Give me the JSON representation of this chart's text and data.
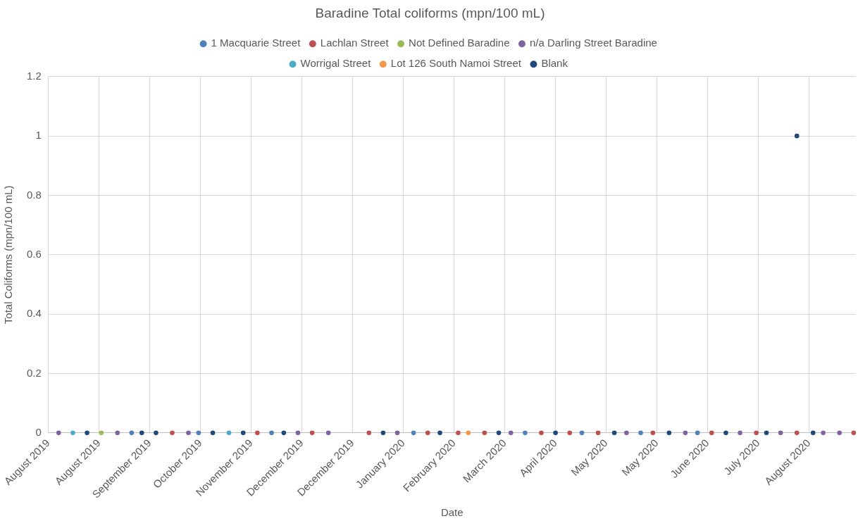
{
  "chart_data": {
    "type": "scatter",
    "title": "Baradine Total coliforms (mpn/100 mL)",
    "xlabel": "Date",
    "ylabel": "Total Coliforms (mpn/100 mL)",
    "xlim": [
      "2019-08-01",
      "2020-09-02"
    ],
    "xticks": [
      {
        "value": "2019-08-01",
        "label": "August 2019"
      },
      {
        "value": "2019-08-26",
        "label": "August 2019"
      },
      {
        "value": "2019-09-20",
        "label": "September 2019"
      },
      {
        "value": "2019-10-15",
        "label": "October 2019"
      },
      {
        "value": "2019-11-09",
        "label": "November 2019"
      },
      {
        "value": "2019-12-04",
        "label": "December 2019"
      },
      {
        "value": "2019-12-29",
        "label": "December 2019"
      },
      {
        "value": "2020-01-23",
        "label": "January 2020"
      },
      {
        "value": "2020-02-17",
        "label": "February 2020"
      },
      {
        "value": "2020-03-13",
        "label": "March 2020"
      },
      {
        "value": "2020-04-07",
        "label": "April 2020"
      },
      {
        "value": "2020-05-02",
        "label": "May 2020"
      },
      {
        "value": "2020-05-27",
        "label": "May 2020"
      },
      {
        "value": "2020-06-21",
        "label": "June 2020"
      },
      {
        "value": "2020-07-16",
        "label": "July 2020"
      },
      {
        "value": "2020-08-10",
        "label": "August 2020"
      }
    ],
    "ylim": [
      0,
      1.2
    ],
    "yticks": [
      0,
      0.2,
      0.4,
      0.6,
      0.8,
      1,
      1.2
    ],
    "grid": true,
    "legend": "top",
    "marker": "circle",
    "series": [
      {
        "name": "1 Macquarie Street",
        "color": "#4f81bd",
        "x": [
          "2019-09-11",
          "2019-10-14",
          "2019-11-19",
          "2020-01-28",
          "2020-03-23",
          "2020-04-20",
          "2020-05-19",
          "2020-06-16"
        ],
        "values": [
          0,
          0,
          0,
          0,
          0,
          0,
          0,
          0
        ]
      },
      {
        "name": "Lachlan Street",
        "color": "#c0504d",
        "x": [
          "2019-10-01",
          "2019-11-12",
          "2019-12-09",
          "2020-01-06",
          "2020-02-04",
          "2020-02-19",
          "2020-03-03",
          "2020-03-31",
          "2020-04-14",
          "2020-04-28",
          "2020-05-25",
          "2020-06-23",
          "2020-07-15",
          "2020-08-04",
          "2020-09-01"
        ],
        "values": [
          0,
          0,
          0,
          0,
          0,
          0,
          0,
          0,
          0,
          0,
          0,
          0,
          0,
          0,
          0
        ]
      },
      {
        "name": "Not Defined Baradine",
        "color": "#9bbb59",
        "x": [
          "2019-08-27"
        ],
        "values": [
          0
        ]
      },
      {
        "name": "n/a Darling Street Baradine",
        "color": "#8064a2",
        "x": [
          "2019-08-06",
          "2019-09-04",
          "2019-10-09",
          "2019-12-02",
          "2019-12-17",
          "2020-01-20",
          "2020-03-16",
          "2020-05-12",
          "2020-06-10",
          "2020-07-07",
          "2020-07-27",
          "2020-08-17",
          "2020-08-25"
        ],
        "values": [
          0,
          0,
          0,
          0,
          0,
          0,
          0,
          0,
          0,
          0,
          0,
          0,
          0
        ]
      },
      {
        "name": "Worrigal Street",
        "color": "#4bacc6",
        "x": [
          "2019-08-13",
          "2019-10-29"
        ],
        "values": [
          0,
          0
        ]
      },
      {
        "name": "Lot 126 South Namoi Street",
        "color": "#f79646",
        "x": [
          "2020-02-24"
        ],
        "values": [
          0
        ]
      },
      {
        "name": "Blank",
        "color": "#1f497d",
        "x": [
          "2019-08-20",
          "2019-09-16",
          "2019-09-23",
          "2019-10-21",
          "2019-11-05",
          "2019-11-25",
          "2020-01-13",
          "2020-02-10",
          "2020-03-10",
          "2020-04-07",
          "2020-05-06",
          "2020-06-02",
          "2020-06-30",
          "2020-07-20",
          "2020-08-04",
          "2020-08-12"
        ],
        "values": [
          0,
          0,
          0,
          0,
          0,
          0,
          0,
          0,
          0,
          0,
          0,
          0,
          0,
          0,
          1,
          0
        ]
      }
    ]
  }
}
